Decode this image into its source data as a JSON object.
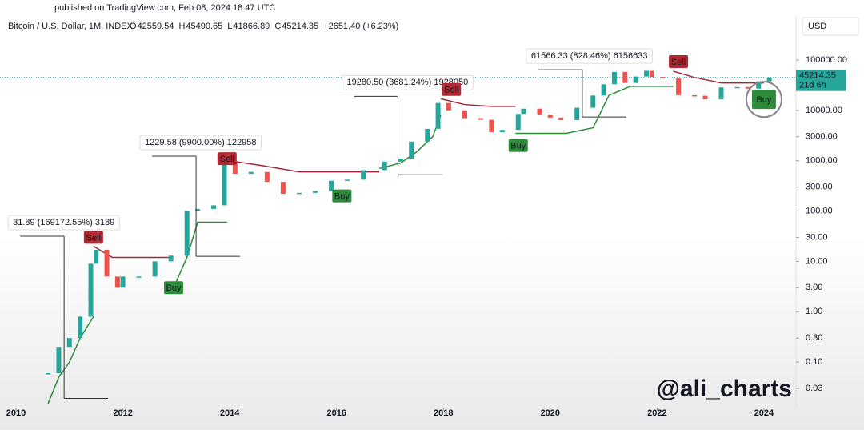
{
  "chart_data": {
    "type": "candlestick",
    "published": "published on TradingView.com, Feb 08, 2024 18:47 UTC",
    "symbol": "Bitcoin / U.S. Dollar, 1M, INDEX",
    "ohlc": [
      {
        "label": "O",
        "value": 42559.54
      },
      {
        "label": "H",
        "value": 45490.65
      },
      {
        "label": "L",
        "value": 41866.89
      },
      {
        "label": "C",
        "value": 45214.35
      }
    ],
    "change": "+2651.40 (+6.23%)",
    "currency": "USD",
    "countdown": "21d 6h",
    "watermark": "@ali_charts",
    "log_scale": true,
    "up_color": "#26a69a",
    "down_color": "#ef5350",
    "x": [
      2010.6,
      2010.8,
      2011.0,
      2011.2,
      2011.4,
      2011.5,
      2011.7,
      2011.9,
      2012.0,
      2012.3,
      2012.6,
      2012.9,
      2013.2,
      2013.4,
      2013.7,
      2013.9,
      2014.1,
      2014.4,
      2014.7,
      2015.0,
      2015.3,
      2015.6,
      2015.9,
      2016.2,
      2016.5,
      2016.9,
      2017.2,
      2017.4,
      2017.7,
      2017.9,
      2018.1,
      2018.4,
      2018.7,
      2018.9,
      2019.1,
      2019.4,
      2019.5,
      2019.8,
      2020.0,
      2020.2,
      2020.5,
      2020.8,
      2021.0,
      2021.2,
      2021.4,
      2021.6,
      2021.8,
      2021.9,
      2022.1,
      2022.4,
      2022.7,
      2022.9,
      2023.2,
      2023.5,
      2023.7,
      2023.9,
      2024.1
    ],
    "close": [
      0.06,
      0.2,
      0.3,
      0.8,
      9,
      17,
      5,
      3,
      5,
      5,
      10,
      13,
      100,
      110,
      130,
      950,
      550,
      600,
      380,
      220,
      230,
      250,
      400,
      420,
      650,
      960,
      1100,
      2400,
      4300,
      14000,
      10000,
      7000,
      6500,
      3700,
      4100,
      8500,
      10800,
      8300,
      7200,
      6400,
      11300,
      19700,
      33000,
      58000,
      35000,
      47000,
      61000,
      46000,
      43000,
      20000,
      19500,
      16500,
      28500,
      29000,
      27000,
      37700,
      45214.35
    ],
    "support": {
      "color": "#2e8b3a",
      "x": [
        2010.6,
        2010.8,
        2011.0,
        2011.2,
        2011.45,
        2012.95,
        2012.95,
        2013.2,
        2013.4,
        2013.95,
        2016.8,
        2016.8,
        2017.2,
        2017.5,
        2017.8,
        2017.95,
        2019.35,
        2019.35,
        2020.3,
        2020.8,
        2021.1,
        2021.5,
        2022.3
      ],
      "values": [
        0.015,
        0.05,
        0.1,
        0.3,
        0.8,
        null,
        3,
        12,
        60,
        60,
        null,
        700,
        900,
        1500,
        3000,
        8000,
        null,
        3500,
        3500,
        4500,
        20000,
        30000,
        30000
      ]
    },
    "resistance": {
      "color": "#a3283a",
      "x": [
        2011.45,
        2011.8,
        2012.3,
        2012.9,
        2014.0,
        2014.0,
        2014.6,
        2015.3,
        2016.8,
        2017.95,
        2017.95,
        2018.4,
        2018.9,
        2019.35,
        2022.3,
        2022.3,
        2022.7,
        2023.2,
        2024.0
      ],
      "values": [
        20,
        12,
        12,
        12,
        null,
        1000,
        800,
        600,
        600,
        null,
        17000,
        13000,
        12000,
        12000,
        null,
        60000,
        45000,
        35000,
        35000
      ]
    },
    "signals": [
      {
        "text": "Sell",
        "x": 2011.45,
        "y": 30
      },
      {
        "text": "Buy",
        "x": 2012.95,
        "y": 3
      },
      {
        "text": "Sell",
        "x": 2013.95,
        "y": 1100
      },
      {
        "text": "Buy",
        "x": 2016.1,
        "y": 200
      },
      {
        "text": "Sell",
        "x": 2018.15,
        "y": 26000
      },
      {
        "text": "Buy",
        "x": 2019.4,
        "y": 2000
      },
      {
        "text": "Sell",
        "x": 2022.4,
        "y": 93000
      },
      {
        "text": "Buy",
        "x": 2024.0,
        "y": 16500,
        "emphasis": true
      }
    ],
    "measures": [
      {
        "text": "31.89 (169172.55%) 3189",
        "x": 2010.9,
        "low": 0.019,
        "high": 31.6
      },
      {
        "text": "1229.58 (9900.00%) 122958",
        "x": 2013.37,
        "low": 12.6,
        "high": 1230
      },
      {
        "text": "19280.50 (3681.24%) 1928050",
        "x": 2017.15,
        "low": 525,
        "high": 19000
      },
      {
        "text": "61566.33 (828.46%) 6156633",
        "x": 2020.6,
        "low": 7400,
        "high": 64000
      }
    ],
    "xlim": [
      2009.7,
      2024.6
    ],
    "xticks": [
      2010,
      2012,
      2014,
      2016,
      2018,
      2020,
      2022,
      2024
    ],
    "ylim": [
      0.012,
      750000
    ],
    "yticks": [
      {
        "value": 0.03,
        "label": "0.03"
      },
      {
        "value": 0.1,
        "label": "0.10"
      },
      {
        "value": 0.3,
        "label": "0.30"
      },
      {
        "value": 1,
        "label": "1.00"
      },
      {
        "value": 3,
        "label": "3.00"
      },
      {
        "value": 10,
        "label": "10.00"
      },
      {
        "value": 30,
        "label": "30.00"
      },
      {
        "value": 100,
        "label": "100.00"
      },
      {
        "value": 300,
        "label": "300.00"
      },
      {
        "value": 1000,
        "label": "1000.00"
      },
      {
        "value": 3000,
        "label": "3000.00"
      },
      {
        "value": 10000,
        "label": "10000.00"
      },
      {
        "value": 100000,
        "label": "100000.00"
      }
    ]
  }
}
